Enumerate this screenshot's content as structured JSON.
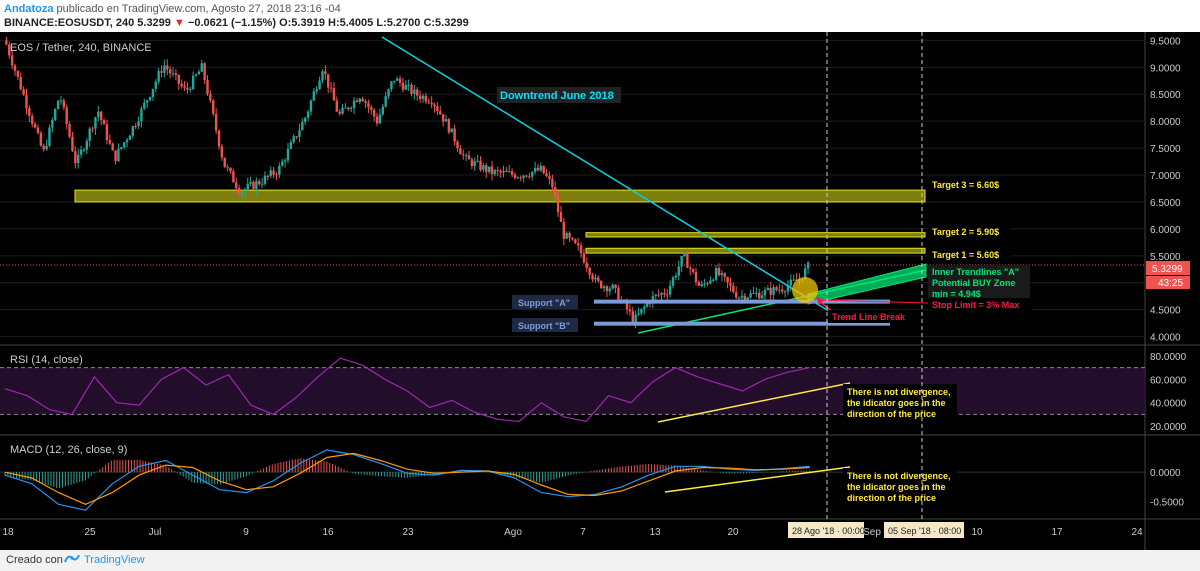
{
  "header": {
    "author": "Andatoza",
    "published": " publicado en TradingView.com, Agosto 27, 2018 23:16 -04",
    "symbol": "BINANCE:EOSUSDT, 240",
    "last": "5.3299",
    "down_arrow": "▼",
    "change": "−0.0621 (−1.15%)",
    "ohlc_o": "O:5.3919",
    "ohlc_h": "H:5.4005",
    "ohlc_l": "L:5.2700",
    "ohlc_c": "C:5.3299"
  },
  "chart_data": [
    {
      "type": "candlestick",
      "title": "EOS / Tether, 240, BINANCE",
      "ylim": [
        3.9,
        9.6
      ],
      "y_ticks": [
        "9.5000",
        "9.0000",
        "8.5000",
        "8.0000",
        "7.5000",
        "7.0000",
        "6.5000",
        "6.0000",
        "5.5000",
        "5.0000",
        "4.5000",
        "4.0000"
      ],
      "last_price_label": "5.3299",
      "countdown": "43:25",
      "x_ticks": [
        "18",
        "25",
        "Jul",
        "9",
        "16",
        "23",
        "Ago",
        "7",
        "13",
        "20",
        "Sep",
        "10",
        "17",
        "24"
      ],
      "close_path": [
        {
          "t": 0,
          "v": 9.5
        },
        {
          "t": 8,
          "v": 8.3
        },
        {
          "t": 14,
          "v": 7.4
        },
        {
          "t": 20,
          "v": 8.5
        },
        {
          "t": 26,
          "v": 7.2
        },
        {
          "t": 34,
          "v": 8.2
        },
        {
          "t": 40,
          "v": 7.3
        },
        {
          "t": 48,
          "v": 8.0
        },
        {
          "t": 58,
          "v": 9.05
        },
        {
          "t": 66,
          "v": 8.55
        },
        {
          "t": 72,
          "v": 9.0
        },
        {
          "t": 80,
          "v": 7.2
        },
        {
          "t": 86,
          "v": 6.7
        },
        {
          "t": 94,
          "v": 6.9
        },
        {
          "t": 100,
          "v": 7.1
        },
        {
          "t": 110,
          "v": 8.1
        },
        {
          "t": 116,
          "v": 9.0
        },
        {
          "t": 122,
          "v": 8.1
        },
        {
          "t": 130,
          "v": 8.5
        },
        {
          "t": 136,
          "v": 8.0
        },
        {
          "t": 142,
          "v": 8.8
        },
        {
          "t": 150,
          "v": 8.5
        },
        {
          "t": 156,
          "v": 8.4
        },
        {
          "t": 162,
          "v": 7.9
        },
        {
          "t": 168,
          "v": 7.3
        },
        {
          "t": 178,
          "v": 7.05
        },
        {
          "t": 188,
          "v": 7.0
        },
        {
          "t": 196,
          "v": 7.1
        },
        {
          "t": 200,
          "v": 6.8
        },
        {
          "t": 204,
          "v": 5.9
        },
        {
          "t": 210,
          "v": 5.6
        },
        {
          "t": 216,
          "v": 5.0
        },
        {
          "t": 222,
          "v": 4.9
        },
        {
          "t": 230,
          "v": 4.3
        },
        {
          "t": 236,
          "v": 4.7
        },
        {
          "t": 242,
          "v": 4.85
        },
        {
          "t": 248,
          "v": 5.5
        },
        {
          "t": 254,
          "v": 4.9
        },
        {
          "t": 260,
          "v": 5.2
        },
        {
          "t": 268,
          "v": 4.75
        },
        {
          "t": 276,
          "v": 4.8
        },
        {
          "t": 284,
          "v": 4.9
        },
        {
          "t": 290,
          "v": 5.05
        },
        {
          "t": 294,
          "v": 5.33
        }
      ]
    },
    {
      "type": "line",
      "title": "RSI (14, close)",
      "ylim": [
        15,
        85
      ],
      "y_ticks": [
        "80.0000",
        "60.0000",
        "40.0000",
        "20.0000"
      ],
      "levels": [
        70,
        30
      ],
      "series": [
        {
          "values": [
            52,
            46,
            34,
            30,
            62,
            40,
            38,
            60,
            70,
            55,
            64,
            38,
            30,
            44,
            62,
            78,
            72,
            60,
            50,
            36,
            42,
            32,
            26,
            24,
            40,
            28,
            24,
            46,
            40,
            58,
            70,
            62,
            56,
            50,
            60,
            66,
            70
          ]
        }
      ]
    },
    {
      "type": "line",
      "title": "MACD (12, 26, close, 9)",
      "ylim": [
        -0.75,
        0.55
      ],
      "y_ticks": [
        "0.0000",
        "-0.5000"
      ],
      "series": [
        {
          "values": [
            -0.05,
            -0.2,
            -0.55,
            -0.65,
            -0.2,
            0.1,
            0.2,
            -0.05,
            -0.3,
            -0.35,
            -0.15,
            0.15,
            0.38,
            0.3,
            0.15,
            -0.02,
            -0.05,
            0.03,
            0.02,
            -0.1,
            -0.35,
            -0.42,
            -0.38,
            -0.25,
            -0.05,
            0.1,
            0.1,
            0.05,
            0.03,
            0.06,
            0.1
          ]
        },
        {
          "values": [
            0.0,
            -0.1,
            -0.35,
            -0.55,
            -0.35,
            -0.05,
            0.12,
            0.08,
            -0.15,
            -0.3,
            -0.25,
            -0.02,
            0.25,
            0.32,
            0.2,
            0.05,
            -0.02,
            0.0,
            0.02,
            -0.04,
            -0.22,
            -0.38,
            -0.4,
            -0.32,
            -0.15,
            0.02,
            0.08,
            0.07,
            0.04,
            0.05,
            0.08
          ]
        }
      ]
    }
  ],
  "annotations": {
    "downtrend": "Downtrend June 2018",
    "target3": "Target 3 = 6.60$",
    "target2": "Target 2 = 5.90$",
    "target1": "Target 1 = 5.60$",
    "inner_trend_1": "Inner Trendlines \"A\"",
    "inner_trend_2": "Potential BUY Zone",
    "inner_trend_3": "min = 4.94$",
    "stop_limit": "Stop Limit = 3% Max",
    "trend_break": "Trend Line Break",
    "support_a": "Support \"A\"",
    "support_b": "Support \"B\"",
    "rsi_note_1": "There is not divergence,",
    "rsi_note_2": "the idicator goes in the",
    "rsi_note_3": "direction of the price",
    "macd_note_1": "There is not divergence,",
    "macd_note_2": "the idicator goes in the",
    "macd_note_3": "direction of the price"
  },
  "time_labels": {
    "cursor_1": "28 Ago '18 · 00:00",
    "cursor_2": "05 Sep '18 · 08:00"
  },
  "footer": {
    "made_with": "Creado con",
    "brand": "TradingView"
  },
  "colors": {
    "up": "#26a69a",
    "down": "#ef5350",
    "trendline": "#00d4e6",
    "zone": "#e5e51a",
    "support": "#7b9bd6",
    "rsi": "#9c27b0",
    "macd": "#2196f3",
    "signal": "#ff9800",
    "green": "#00e676"
  }
}
